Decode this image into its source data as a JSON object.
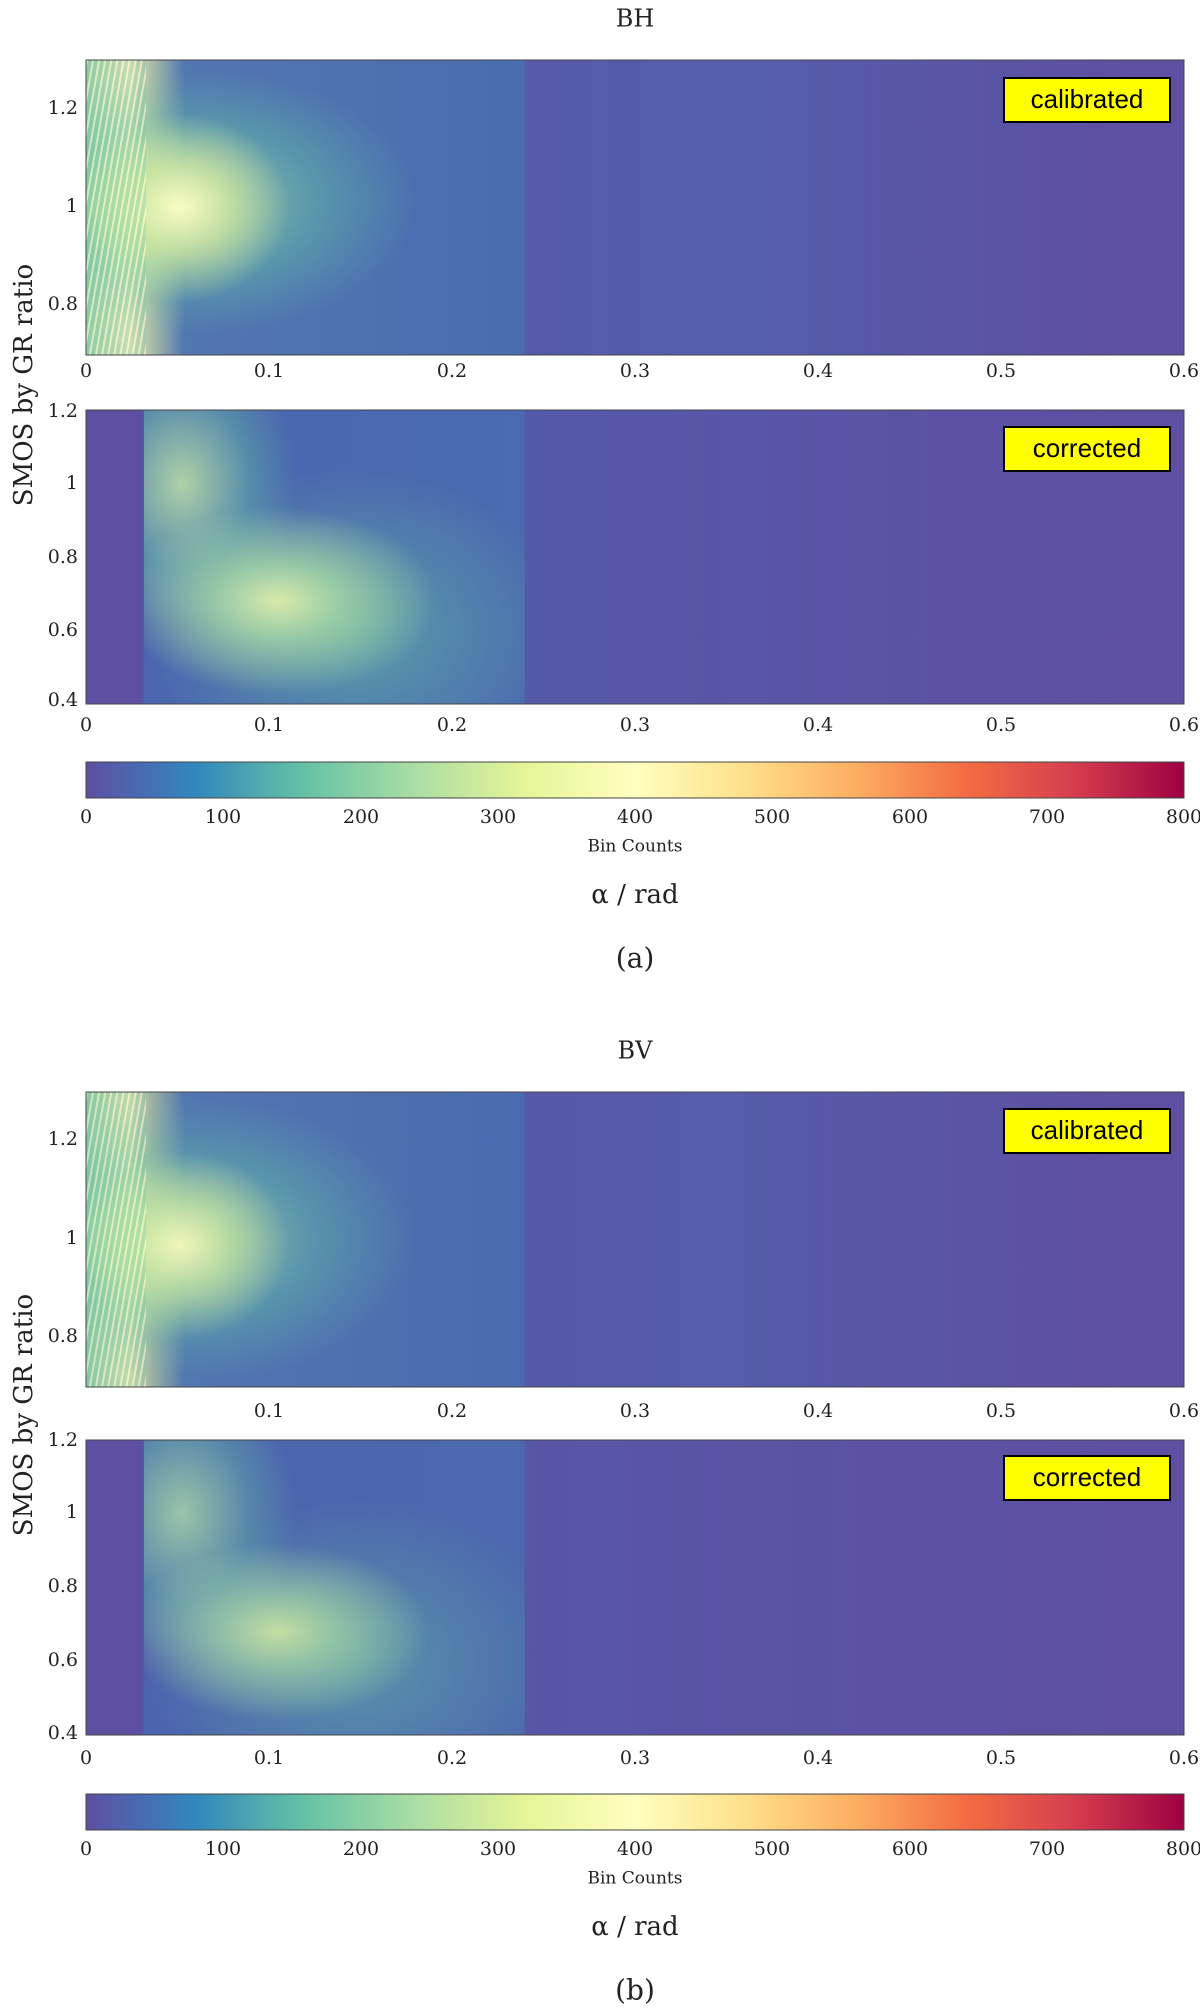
{
  "figure": {
    "ylabel": "SMOS by GR ratio",
    "xlabel": "α / rad",
    "colorbar_label": "Bin Counts",
    "colorbar_ticks": [
      "0",
      "100",
      "200",
      "300",
      "400",
      "500",
      "600",
      "700",
      "800"
    ],
    "x_ticks": [
      "0",
      "0.1",
      "0.2",
      "0.3",
      "0.4",
      "0.5",
      "0.6"
    ]
  },
  "panels": [
    {
      "title": "BH",
      "caption": "(a)",
      "top": {
        "badge": "calibrated",
        "y_ticks": [
          "0.8",
          "1",
          "1.2"
        ]
      },
      "bottom": {
        "badge": "corrected",
        "y_ticks": [
          "0.4",
          "0.6",
          "0.8",
          "1",
          "1.2"
        ]
      }
    },
    {
      "title": "BV",
      "caption": "(b)",
      "top": {
        "badge": "calibrated",
        "y_ticks": [
          "0.8",
          "1",
          "1.2"
        ]
      },
      "bottom": {
        "badge": "corrected",
        "y_ticks": [
          "0.4",
          "0.6",
          "0.8",
          "1",
          "1.2"
        ]
      }
    }
  ],
  "chart_data": [
    {
      "type": "heatmap",
      "title": "BH",
      "variant": "calibrated",
      "xlabel": "α / rad",
      "ylabel": "SMOS by GR ratio",
      "xlim": [
        0,
        0.6
      ],
      "ylim": [
        0.7,
        1.3
      ],
      "clim": [
        0,
        800
      ],
      "colorbar_label": "Bin Counts",
      "hotspot": {
        "x": 0.055,
        "y": 0.98,
        "peak_count": 330
      }
    },
    {
      "type": "heatmap",
      "title": "BH",
      "variant": "corrected",
      "xlabel": "α / rad",
      "ylabel": "SMOS by GR ratio",
      "xlim": [
        0,
        0.6
      ],
      "ylim": [
        0.4,
        1.2
      ],
      "clim": [
        0,
        800
      ],
      "colorbar_label": "Bin Counts",
      "hotspot": {
        "x": 0.12,
        "y": 0.68,
        "peak_count": 290
      }
    },
    {
      "type": "heatmap",
      "title": "BV",
      "variant": "calibrated",
      "xlabel": "α / rad",
      "ylabel": "SMOS by GR ratio",
      "xlim": [
        0,
        0.6
      ],
      "ylim": [
        0.7,
        1.3
      ],
      "clim": [
        0,
        800
      ],
      "colorbar_label": "Bin Counts",
      "hotspot": {
        "x": 0.055,
        "y": 0.97,
        "peak_count": 290
      }
    },
    {
      "type": "heatmap",
      "title": "BV",
      "variant": "corrected",
      "xlabel": "α / rad",
      "ylabel": "SMOS by GR ratio",
      "xlim": [
        0,
        0.6
      ],
      "ylim": [
        0.4,
        1.2
      ],
      "clim": [
        0,
        800
      ],
      "colorbar_label": "Bin Counts",
      "hotspot": {
        "x": 0.12,
        "y": 0.68,
        "peak_count": 260
      }
    }
  ],
  "colors": {
    "colormap": [
      "#5e4fa2",
      "#3288bd",
      "#66c2a5",
      "#abdda4",
      "#e6f598",
      "#ffffbf",
      "#fee08b",
      "#fdae61",
      "#f46d43",
      "#d53e4f",
      "#9e0142"
    ],
    "badge_fill": "#ffff00",
    "badge_border": "#000000"
  }
}
